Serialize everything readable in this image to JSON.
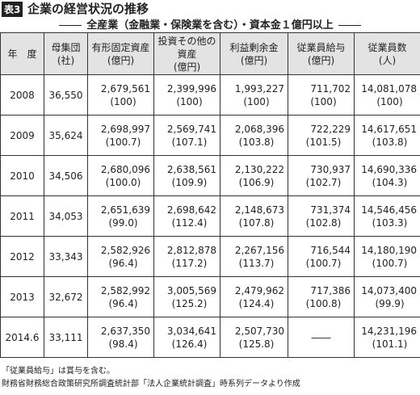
{
  "header": {
    "badge": "表3",
    "title": "企業の経営状況の推移",
    "subtitle": "全産業（金融業・保険業を含む）・資本金１億円以上"
  },
  "table": {
    "columns": [
      {
        "label": "年　度"
      },
      {
        "label": "母集団",
        "unit": "(社)"
      },
      {
        "label": "有形固定資産",
        "unit": "(億円)"
      },
      {
        "label": "投資その他の資産",
        "unit": "(億円)"
      },
      {
        "label": "利益剰余金",
        "unit": "(億円)"
      },
      {
        "label": "従業員給与",
        "unit": "(億円)"
      },
      {
        "label": "従業員数",
        "unit": "(人)"
      }
    ],
    "rows": [
      {
        "year": "2008",
        "population": "36,550",
        "cells": [
          {
            "value": "2,679,561",
            "index": "(100)"
          },
          {
            "value": "2,399,996",
            "index": "(100)"
          },
          {
            "value": "1,993,227",
            "index": "(100)"
          },
          {
            "value": "711,702",
            "index": "(100)"
          },
          {
            "value": "14,081,078",
            "index": "(100)"
          }
        ]
      },
      {
        "year": "2009",
        "population": "35,624",
        "cells": [
          {
            "value": "2,698,997",
            "index": "(100.7)"
          },
          {
            "value": "2,569,741",
            "index": "(107.1)"
          },
          {
            "value": "2,068,396",
            "index": "(103.8)"
          },
          {
            "value": "722,229",
            "index": "(101.5)"
          },
          {
            "value": "14,617,651",
            "index": "(103.8)"
          }
        ]
      },
      {
        "year": "2010",
        "population": "34,506",
        "cells": [
          {
            "value": "2,680,096",
            "index": "(100.0)"
          },
          {
            "value": "2,638,561",
            "index": "(109.9)"
          },
          {
            "value": "2,130,222",
            "index": "(106.9)"
          },
          {
            "value": "730,937",
            "index": "(102.7)"
          },
          {
            "value": "14,690,336",
            "index": "(104.3)"
          }
        ]
      },
      {
        "year": "2011",
        "population": "34,053",
        "cells": [
          {
            "value": "2,651,639",
            "index": "(99.0)"
          },
          {
            "value": "2,698,642",
            "index": "(112.4)"
          },
          {
            "value": "2,148,673",
            "index": "(107.8)"
          },
          {
            "value": "731,374",
            "index": "(102.8)"
          },
          {
            "value": "14,546,456",
            "index": "(103.3)"
          }
        ]
      },
      {
        "year": "2012",
        "population": "33,343",
        "cells": [
          {
            "value": "2,582,926",
            "index": "(96.4)"
          },
          {
            "value": "2,812,878",
            "index": "(117.2)"
          },
          {
            "value": "2,267,156",
            "index": "(113.7)"
          },
          {
            "value": "716,544",
            "index": "(100.7)"
          },
          {
            "value": "14,180,190",
            "index": "(100.7)"
          }
        ]
      },
      {
        "year": "2013",
        "population": "32,672",
        "cells": [
          {
            "value": "2,582,992",
            "index": "(96.4)"
          },
          {
            "value": "3,005,569",
            "index": "(125.2)"
          },
          {
            "value": "2,479,962",
            "index": "(124.4)"
          },
          {
            "value": "717,386",
            "index": "(100.8)"
          },
          {
            "value": "14,073,400",
            "index": "(99.9)"
          }
        ]
      },
      {
        "year": "2014.6",
        "population": "33,111",
        "cells": [
          {
            "value": "2,637,350",
            "index": "(98.4)"
          },
          {
            "value": "3,034,641",
            "index": "(126.4)"
          },
          {
            "value": "2,507,730",
            "index": "(125.8)"
          },
          {
            "value": "――"
          },
          {
            "value": "14,231,196",
            "index": "(101.1)"
          }
        ]
      }
    ]
  },
  "notes": [
    "「従業員給与」は賞与を含む。",
    "財務省財務総合政策研究所調査統計部「法人企業統計調査」時系列データより作成"
  ]
}
